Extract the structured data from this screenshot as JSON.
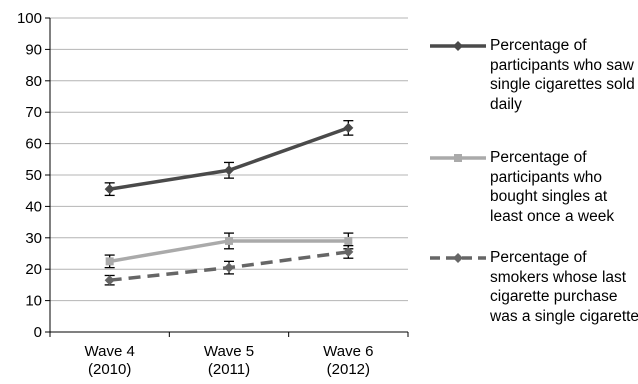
{
  "chart_data": {
    "type": "line",
    "categories": [
      "Wave 4\n(2010)",
      "Wave 5\n(2011)",
      "Wave 6\n(2012)"
    ],
    "ylim": [
      0,
      100
    ],
    "yticks": [
      0,
      10,
      20,
      30,
      40,
      50,
      60,
      70,
      80,
      90,
      100
    ],
    "ytick_labels": [
      "0",
      "10",
      "20",
      "30",
      "40",
      "50",
      "60",
      "70",
      "80",
      "90",
      "100"
    ],
    "grid": "horizontal",
    "legend_position": "right",
    "error_bars": true,
    "series": [
      {
        "name": "Percentage of participants who saw single cigarettes sold daily",
        "values": [
          45.5,
          51.5,
          65
        ],
        "errors": [
          2,
          2.5,
          2.3
        ],
        "color": "#4a4a4a",
        "line_style": "solid",
        "marker": "diamond"
      },
      {
        "name": "Percentage of participants who bought singles at least once a week",
        "values": [
          22.5,
          29,
          29
        ],
        "errors": [
          2,
          2.5,
          2.5
        ],
        "color": "#aaaaaa",
        "line_style": "solid",
        "marker": "square"
      },
      {
        "name": "Percentage of smokers whose last cigarette purchase was a single cigarette",
        "values": [
          16.5,
          20.5,
          25.5
        ],
        "errors": [
          1.5,
          2,
          2
        ],
        "color": "#666666",
        "line_style": "dashed",
        "marker": "diamond"
      }
    ]
  }
}
